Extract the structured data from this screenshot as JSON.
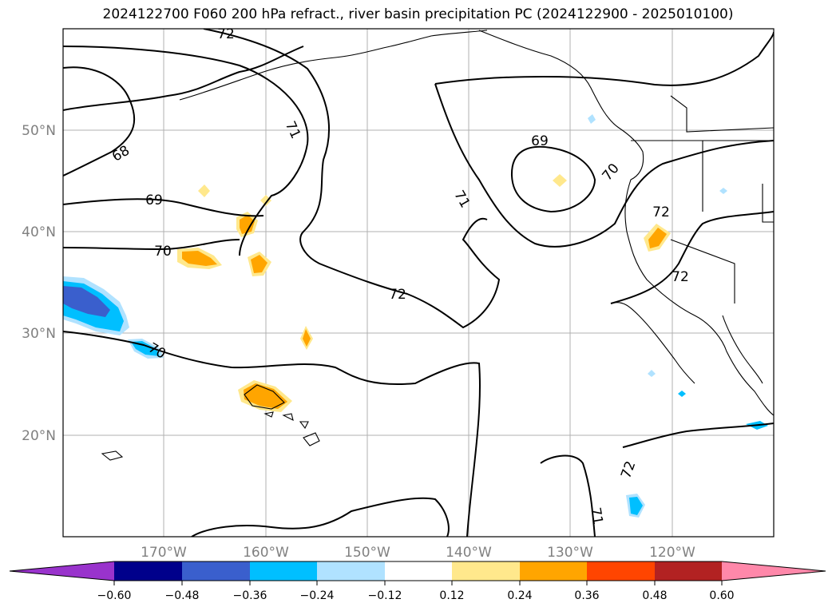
{
  "title": "2024122700 F060 200 hPa refract., river basin precipitation PC (2024122900 - 2025010100)",
  "latitude_labels": [
    "50°N",
    "40°N",
    "30°N",
    "20°N"
  ],
  "longitude_labels": [
    "170°W",
    "160°W",
    "150°W",
    "140°W",
    "130°W",
    "120°W"
  ],
  "contour_labels": [
    "72",
    "71",
    "68",
    "69",
    "70",
    "72",
    "69",
    "70",
    "71",
    "72",
    "72",
    "70",
    "72",
    "71"
  ],
  "colorbar": {
    "tick_labels": [
      "−0.60",
      "−0.48",
      "−0.36",
      "−0.24",
      "−0.12",
      "0.12",
      "0.24",
      "0.36",
      "0.48",
      "0.60"
    ],
    "colors": [
      "#9933cc",
      "#00008b",
      "#3a5fcd",
      "#00bfff",
      "#b0e2ff",
      "#ffffff",
      "#ffe88c",
      "#ffa500",
      "#ff4500",
      "#b22222",
      "#ff88aa"
    ],
    "extend": "both"
  },
  "colors": {
    "contour": "#000000",
    "gridline": "#b0b0b0",
    "coastline": "#000000"
  }
}
